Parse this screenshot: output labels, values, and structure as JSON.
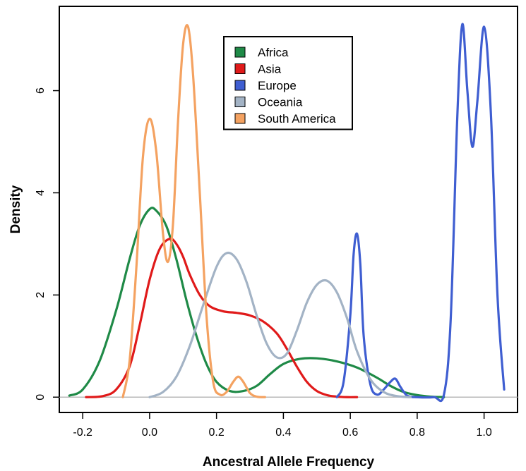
{
  "chart_data": {
    "type": "line",
    "title": "",
    "xlabel": "Ancestral Allele Frequency",
    "ylabel": "Density",
    "xlim": [
      -0.27,
      1.1
    ],
    "ylim": [
      -0.3,
      7.65
    ],
    "xticks": [
      "-0.2",
      "0.0",
      "0.2",
      "0.4",
      "0.6",
      "0.8",
      "1.0"
    ],
    "yticks": [
      "0",
      "2",
      "4",
      "6"
    ],
    "xtick_values": [
      -0.2,
      0.0,
      0.2,
      0.4,
      0.6,
      0.8,
      1.0
    ],
    "ytick_values": [
      0,
      2,
      4,
      6
    ],
    "baseline": 0,
    "legend_position": "top-center",
    "series": [
      {
        "name": "Africa",
        "color": "#1f8a47",
        "x": [
          -0.24,
          -0.2,
          -0.15,
          -0.1,
          -0.06,
          -0.03,
          0.0,
          0.02,
          0.05,
          0.08,
          0.11,
          0.14,
          0.17,
          0.2,
          0.24,
          0.28,
          0.32,
          0.36,
          0.4,
          0.45,
          0.5,
          0.56,
          0.62,
          0.68,
          0.72,
          0.76,
          0.8,
          0.84,
          0.88
        ],
        "y": [
          0.03,
          0.15,
          0.7,
          1.7,
          2.7,
          3.35,
          3.68,
          3.65,
          3.35,
          2.7,
          1.9,
          1.2,
          0.65,
          0.3,
          0.12,
          0.12,
          0.22,
          0.45,
          0.65,
          0.75,
          0.76,
          0.7,
          0.58,
          0.38,
          0.22,
          0.1,
          0.04,
          0.01,
          0.0
        ]
      },
      {
        "name": "Asia",
        "color": "#e01a1a",
        "x": [
          -0.19,
          -0.14,
          -0.1,
          -0.06,
          -0.03,
          0.0,
          0.03,
          0.06,
          0.08,
          0.1,
          0.12,
          0.15,
          0.18,
          0.22,
          0.26,
          0.3,
          0.34,
          0.38,
          0.41,
          0.44,
          0.47,
          0.5,
          0.53,
          0.56,
          0.59,
          0.62
        ],
        "y": [
          0.0,
          0.02,
          0.15,
          0.6,
          1.4,
          2.3,
          2.9,
          3.1,
          3.0,
          2.75,
          2.4,
          2.0,
          1.78,
          1.68,
          1.65,
          1.6,
          1.48,
          1.25,
          0.95,
          0.6,
          0.3,
          0.12,
          0.04,
          0.01,
          0.0,
          0.0
        ]
      },
      {
        "name": "Europe",
        "color": "#3f5ed1",
        "x": [
          0.56,
          0.58,
          0.6,
          0.61,
          0.62,
          0.63,
          0.64,
          0.66,
          0.68,
          0.7,
          0.72,
          0.735,
          0.75,
          0.77,
          0.8,
          0.85,
          0.88,
          0.9,
          0.92,
          0.935,
          0.95,
          0.965,
          0.98,
          1.0,
          1.02,
          1.04,
          1.06
        ],
        "y": [
          0.0,
          0.3,
          1.6,
          2.8,
          3.2,
          2.6,
          1.2,
          0.25,
          0.05,
          0.15,
          0.3,
          0.36,
          0.2,
          0.03,
          0.0,
          0.0,
          0.05,
          1.5,
          5.5,
          7.3,
          6.0,
          4.9,
          5.8,
          7.25,
          5.6,
          2.0,
          0.15
        ]
      },
      {
        "name": "Oceania",
        "color": "#a3b3c5",
        "x": [
          0.0,
          0.04,
          0.08,
          0.12,
          0.16,
          0.2,
          0.23,
          0.26,
          0.29,
          0.32,
          0.35,
          0.38,
          0.41,
          0.44,
          0.47,
          0.5,
          0.53,
          0.56,
          0.59,
          0.62,
          0.66,
          0.7,
          0.74,
          0.78
        ],
        "y": [
          0.0,
          0.1,
          0.4,
          1.0,
          1.8,
          2.55,
          2.82,
          2.7,
          2.25,
          1.6,
          1.05,
          0.78,
          0.85,
          1.3,
          1.85,
          2.2,
          2.28,
          2.05,
          1.55,
          0.9,
          0.35,
          0.1,
          0.02,
          0.0
        ]
      },
      {
        "name": "South America",
        "color": "#f4a261",
        "x": [
          -0.08,
          -0.06,
          -0.04,
          -0.02,
          0.0,
          0.02,
          0.04,
          0.055,
          0.07,
          0.085,
          0.1,
          0.115,
          0.13,
          0.15,
          0.17,
          0.19,
          0.21,
          0.23,
          0.25,
          0.265,
          0.28,
          0.3,
          0.32,
          0.345
        ],
        "y": [
          0.0,
          0.7,
          2.5,
          4.7,
          5.45,
          4.8,
          3.2,
          2.65,
          3.4,
          5.4,
          6.9,
          7.25,
          6.3,
          4.0,
          1.6,
          0.3,
          0.05,
          0.1,
          0.3,
          0.4,
          0.3,
          0.08,
          0.01,
          0.0
        ]
      }
    ]
  }
}
